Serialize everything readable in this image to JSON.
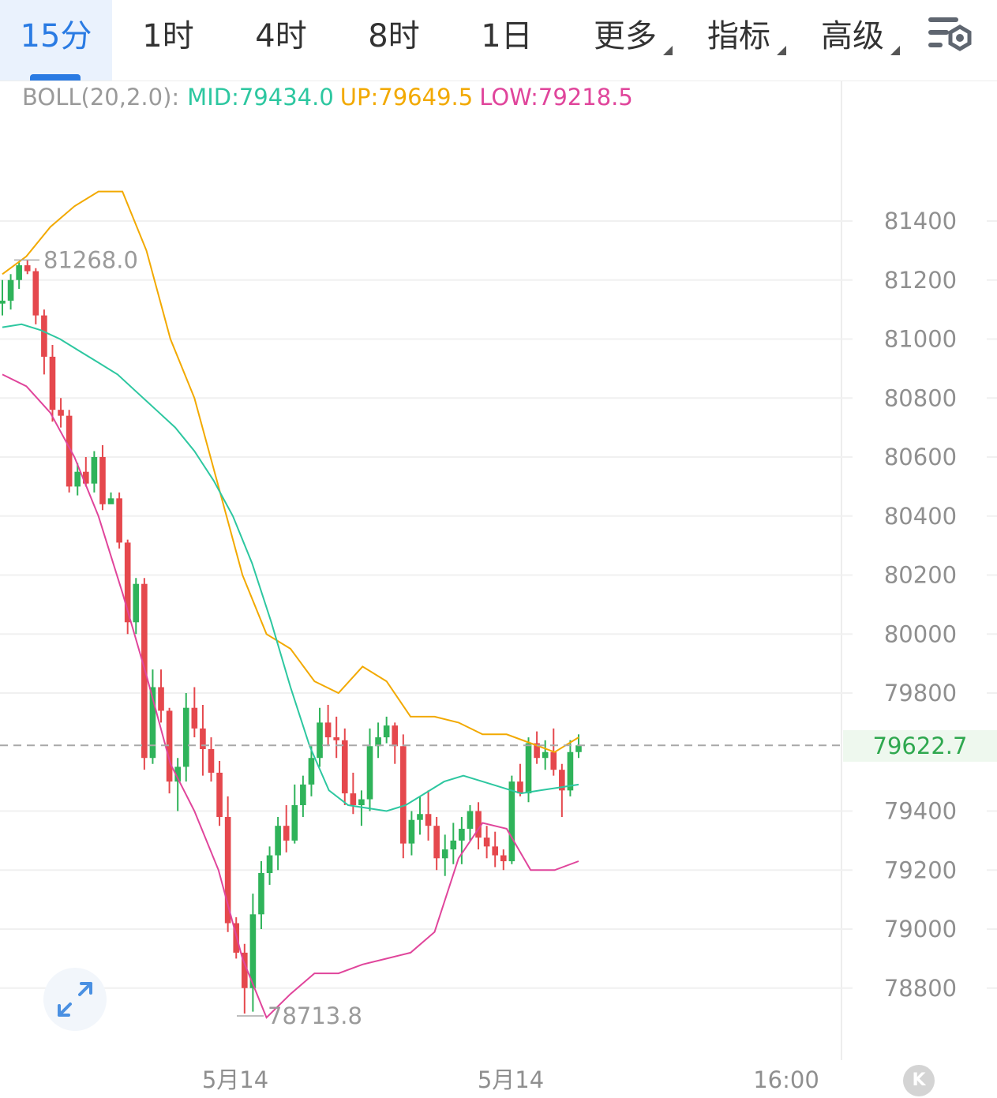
{
  "tabs": [
    {
      "label": "15分",
      "active": true
    },
    {
      "label": "1时"
    },
    {
      "label": "4时"
    },
    {
      "label": "8时"
    },
    {
      "label": "1日"
    },
    {
      "label": "更多",
      "dropdown": true
    },
    {
      "label": "指标",
      "dropdown": true
    },
    {
      "label": "高级",
      "dropdown": true
    }
  ],
  "settings_icon": "chart-settings-icon",
  "indicator": {
    "name": "BOLL(20,2.0):",
    "mid": "MID:79434.0",
    "up": "UP:79649.5",
    "low": "LOW:79218.5"
  },
  "current_price": "79622.7",
  "expand_icon": "expand-arrows-icon",
  "k_button_label": "K",
  "colors": {
    "up_candle": "#2fb35a",
    "down_candle": "#e5484d",
    "mid_line": "#2dc7a0",
    "upper_line": "#f2a900",
    "lower_line": "#e0459b",
    "active_tab": "#2a7be3"
  },
  "chart_data": {
    "type": "candlestick",
    "y_ticks": [
      "81400",
      "81200",
      "81000",
      "80800",
      "80600",
      "80400",
      "80200",
      "80000",
      "79800",
      "79400",
      "79200",
      "79000",
      "78800"
    ],
    "y_range": [
      78650,
      81650
    ],
    "x_labels": [
      "5月14",
      "5月14",
      "16:00"
    ],
    "high_marker": "81268.0",
    "low_marker": "78713.8",
    "last_price": 79622.7,
    "candles": [
      [
        81120,
        81200,
        81080,
        81130
      ],
      [
        81130,
        81220,
        81100,
        81200
      ],
      [
        81200,
        81260,
        81170,
        81250
      ],
      [
        81250,
        81268,
        81220,
        81230
      ],
      [
        81230,
        81240,
        81050,
        81080
      ],
      [
        81080,
        81100,
        80880,
        80940
      ],
      [
        80940,
        80980,
        80720,
        80760
      ],
      [
        80760,
        80800,
        80700,
        80740
      ],
      [
        80740,
        80760,
        80480,
        80500
      ],
      [
        80500,
        80580,
        80470,
        80550
      ],
      [
        80550,
        80600,
        80500,
        80510
      ],
      [
        80510,
        80620,
        80480,
        80600
      ],
      [
        80600,
        80640,
        80420,
        80440
      ],
      [
        80440,
        80480,
        80450,
        80460
      ],
      [
        80460,
        80480,
        80290,
        80310
      ],
      [
        80310,
        80320,
        80000,
        80040
      ],
      [
        80040,
        80190,
        80000,
        80170
      ],
      [
        80170,
        80190,
        79540,
        79580
      ],
      [
        79580,
        79880,
        79560,
        79820
      ],
      [
        79820,
        79880,
        79700,
        79740
      ],
      [
        79740,
        79750,
        79460,
        79500
      ],
      [
        79500,
        79580,
        79400,
        79550
      ],
      [
        79550,
        79800,
        79500,
        79750
      ],
      [
        79750,
        79820,
        79650,
        79680
      ],
      [
        79680,
        79760,
        79520,
        79610
      ],
      [
        79610,
        79650,
        79500,
        79530
      ],
      [
        79530,
        79570,
        79350,
        79380
      ],
      [
        79380,
        79450,
        78990,
        79020
      ],
      [
        79020,
        79040,
        78900,
        78920
      ],
      [
        78920,
        78950,
        78713.8,
        78800
      ],
      [
        78800,
        79120,
        78720,
        79050
      ],
      [
        79050,
        79230,
        79000,
        79190
      ],
      [
        79190,
        79280,
        79150,
        79250
      ],
      [
        79250,
        79380,
        79200,
        79350
      ],
      [
        79350,
        79420,
        79260,
        79300
      ],
      [
        79300,
        79490,
        79290,
        79420
      ],
      [
        79420,
        79520,
        79380,
        79490
      ],
      [
        79490,
        79620,
        79450,
        79580
      ],
      [
        79580,
        79750,
        79550,
        79700
      ],
      [
        79700,
        79760,
        79620,
        79650
      ],
      [
        79650,
        79720,
        79580,
        79640
      ],
      [
        79640,
        79680,
        79420,
        79460
      ],
      [
        79460,
        79530,
        79390,
        79420
      ],
      [
        79420,
        79470,
        79350,
        79440
      ],
      [
        79440,
        79680,
        79400,
        79620
      ],
      [
        79620,
        79700,
        79580,
        79650
      ],
      [
        79650,
        79720,
        79630,
        79690
      ],
      [
        79690,
        79700,
        79560,
        79620
      ],
      [
        79620,
        79660,
        79240,
        79290
      ],
      [
        79290,
        79400,
        79250,
        79370
      ],
      [
        79370,
        79450,
        79320,
        79390
      ],
      [
        79390,
        79470,
        79300,
        79350
      ],
      [
        79350,
        79380,
        79200,
        79240
      ],
      [
        79240,
        79320,
        79180,
        79270
      ],
      [
        79270,
        79360,
        79220,
        79300
      ],
      [
        79300,
        79380,
        79220,
        79340
      ],
      [
        79340,
        79420,
        79300,
        79400
      ],
      [
        79400,
        79430,
        79270,
        79310
      ],
      [
        79310,
        79350,
        79240,
        79280
      ],
      [
        79280,
        79330,
        79210,
        79250
      ],
      [
        79250,
        79270,
        79200,
        79230
      ],
      [
        79230,
        79520,
        79220,
        79500
      ],
      [
        79500,
        79560,
        79450,
        79460
      ],
      [
        79460,
        79650,
        79430,
        79630
      ],
      [
        79630,
        79670,
        79560,
        79580
      ],
      [
        79580,
        79640,
        79540,
        79600
      ],
      [
        79600,
        79680,
        79520,
        79540
      ],
      [
        79540,
        79560,
        79380,
        79470
      ],
      [
        79470,
        79640,
        79450,
        79600
      ],
      [
        79600,
        79660,
        79580,
        79622.7
      ]
    ],
    "mid_band": [
      81040,
      81050,
      81030,
      81000,
      80960,
      80920,
      80880,
      80820,
      80760,
      80700,
      80620,
      80520,
      80400,
      80240,
      80040,
      79820,
      79620,
      79470,
      79420,
      79410,
      79400,
      79420,
      79460,
      79500,
      79520,
      79500,
      79480,
      79460,
      79470,
      79480,
      79490
    ],
    "upper_band": [
      81220,
      81280,
      81380,
      81450,
      81500,
      81500,
      81300,
      81000,
      80800,
      80500,
      80200,
      80000,
      79950,
      79840,
      79800,
      79890,
      79840,
      79720,
      79720,
      79700,
      79660,
      79660,
      79630,
      79600,
      79650
    ],
    "lower_band": [
      80880,
      80840,
      80750,
      80600,
      80400,
      80140,
      79860,
      79560,
      79400,
      79200,
      78900,
      78700,
      78780,
      78850,
      78850,
      78880,
      78900,
      78920,
      78990,
      79240,
      79360,
      79340,
      79200,
      79200,
      79230
    ]
  }
}
